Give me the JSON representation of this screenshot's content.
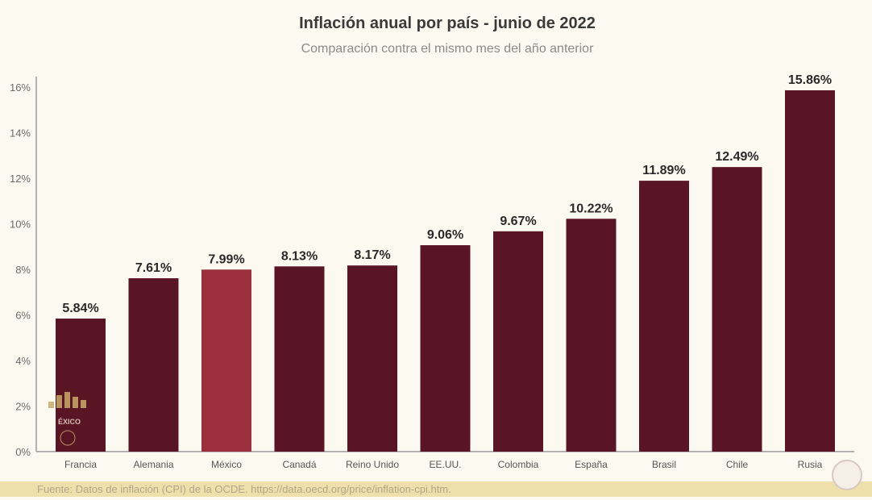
{
  "chart_data": {
    "type": "bar",
    "title": "Inflación anual por país - junio de 2022",
    "subtitle": "Comparación contra el mismo mes del año anterior",
    "categories": [
      "Francia",
      "Alemania",
      "México",
      "Canadá",
      "Reino Unido",
      "EE.UU.",
      "Colombia",
      "España",
      "Brasil",
      "Chile",
      "Rusia"
    ],
    "values": [
      5.84,
      7.61,
      7.99,
      8.13,
      8.17,
      9.06,
      9.67,
      10.22,
      11.89,
      12.49,
      15.86
    ],
    "data_labels": [
      "5.84%",
      "7.61%",
      "7.99%",
      "8.13%",
      "8.17%",
      "9.06%",
      "9.67%",
      "10.22%",
      "11.89%",
      "12.49%",
      "15.86%"
    ],
    "yticks": [
      0,
      2,
      4,
      6,
      8,
      10,
      12,
      14,
      16
    ],
    "ytick_labels": [
      "0%",
      "2%",
      "4%",
      "6%",
      "8%",
      "10%",
      "12%",
      "14%",
      "16%"
    ],
    "ylim": [
      0,
      16
    ],
    "xlabel": "",
    "ylabel": "",
    "grid": false,
    "colors": {
      "default": "#5a1525",
      "highlight": "#9b2f3c",
      "highlight_category": "México"
    }
  },
  "footer": {
    "source": "Fuente: Datos de inflación (CPI) de la OCDE. https://data.oecd.org/price/inflation-cpi.htm."
  },
  "logo": {
    "text": "GOBIERNO DE MÉXICO"
  }
}
